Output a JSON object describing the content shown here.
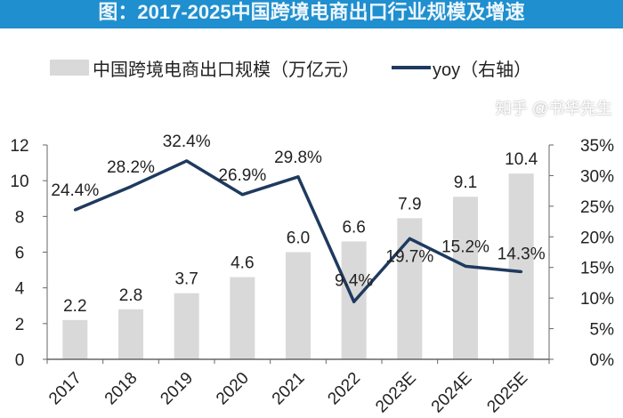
{
  "chart_data": {
    "type": "bar+line",
    "title": "图：2017-2025中国跨境电商出口行业规模及增速",
    "categories": [
      "2017",
      "2018",
      "2019",
      "2020",
      "2021",
      "2022",
      "2023E",
      "2024E",
      "2025E"
    ],
    "series": [
      {
        "name": "中国跨境电商出口规模（万亿元）",
        "type": "bar",
        "axis": "left",
        "color": "#d9d9d9",
        "values": [
          2.2,
          2.8,
          3.7,
          4.6,
          6.0,
          6.6,
          7.9,
          9.1,
          10.4
        ],
        "labels": [
          "2.2",
          "2.8",
          "3.7",
          "4.6",
          "6.0",
          "6.6",
          "7.9",
          "9.1",
          "10.4"
        ]
      },
      {
        "name": "yoy（右轴）",
        "type": "line",
        "axis": "right",
        "color": "#1f3a5f",
        "values": [
          24.4,
          28.2,
          32.4,
          26.9,
          29.8,
          9.4,
          19.7,
          15.2,
          14.3
        ],
        "labels": [
          "24.4%",
          "28.2%",
          "32.4%",
          "26.9%",
          "29.8%",
          "9.4%",
          "19.7%",
          "15.2%",
          "14.3%"
        ]
      }
    ],
    "left_axis": {
      "ylim": [
        0,
        12
      ],
      "ticks": [
        "0",
        "2",
        "4",
        "6",
        "8",
        "10",
        "12"
      ]
    },
    "right_axis": {
      "ylim": [
        0,
        35
      ],
      "ticks": [
        "0%",
        "5%",
        "10%",
        "15%",
        "20%",
        "25%",
        "30%",
        "35%"
      ]
    },
    "grid": false,
    "legend_placement": "top"
  },
  "title_color": "#1f8fcf",
  "watermark": "知乎 @书华先生"
}
